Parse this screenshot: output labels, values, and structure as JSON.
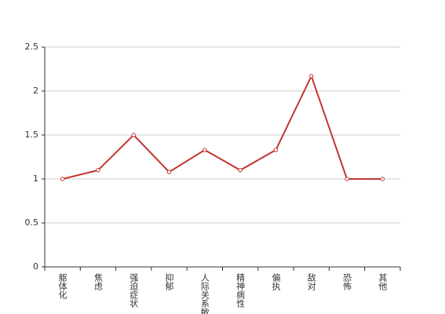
{
  "chart_data": {
    "type": "line",
    "categories": [
      "躯体化",
      "焦虑",
      "强迫症状",
      "抑郁",
      "人际关系敏感",
      "精神病性",
      "偏执",
      "敌对",
      "恐怖",
      "其他"
    ],
    "series": [
      {
        "color": "#c23531",
        "values": [
          1,
          1.1,
          1.5,
          1.08,
          1.33,
          1.1,
          1.33,
          2.17,
          1,
          1
        ]
      }
    ],
    "ylim": [
      0,
      2.5
    ],
    "yticks": [
      0,
      {
        "value": 0.5,
        "label": "0.5"
      },
      1,
      {
        "value": 1.5,
        "label": "1.5"
      },
      2,
      {
        "value": 2.5,
        "label": "2.5"
      }
    ],
    "grid": true
  }
}
